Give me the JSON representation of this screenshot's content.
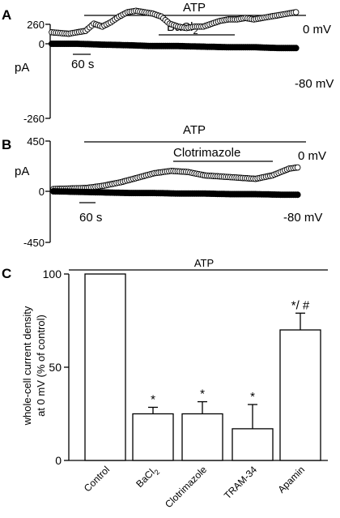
{
  "chart_data": [
    {
      "type": "line",
      "panel_letter": "A",
      "ylabel": "pA",
      "y_ticks": [
        "260",
        "0",
        "-260"
      ],
      "ylim": [
        -260,
        260
      ],
      "treatment_bars": [
        {
          "label": "ATP",
          "x_range_s": [
            80,
            580
          ]
        },
        {
          "label": "BaCl",
          "label_sub": "2",
          "x_range_s": [
            240,
            420
          ]
        }
      ],
      "scale_bar_label": "60 s",
      "series": [
        {
          "name": "0 mV",
          "marker": "open-circle",
          "x": [
            0,
            40,
            80,
            100,
            120,
            140,
            160,
            180,
            200,
            220,
            240,
            260,
            280,
            300,
            320,
            340,
            360,
            380,
            400,
            420,
            440,
            460,
            480,
            500,
            520,
            540,
            560,
            580
          ],
          "y": [
            40,
            35,
            45,
            70,
            60,
            75,
            95,
            110,
            115,
            110,
            105,
            95,
            70,
            60,
            55,
            60,
            60,
            70,
            80,
            85,
            85,
            90,
            85,
            90,
            95,
            100,
            105,
            110
          ]
        },
        {
          "name": "-80 mV",
          "marker": "filled-circle",
          "x": [
            0,
            60,
            120,
            180,
            240,
            300,
            360,
            420,
            480,
            540,
            580
          ],
          "y": [
            0,
            0,
            -3,
            -5,
            -8,
            -8,
            -10,
            -12,
            -12,
            -15,
            -15
          ]
        }
      ]
    },
    {
      "type": "line",
      "panel_letter": "B",
      "ylabel": "pA",
      "y_ticks": [
        "450",
        "0",
        "-450"
      ],
      "ylim": [
        -450,
        450
      ],
      "treatment_bars": [
        {
          "label": "ATP",
          "x_range_s": [
            80,
            580
          ]
        },
        {
          "label": "Clotrimazole",
          "x_range_s": [
            280,
            480
          ]
        }
      ],
      "scale_bar_label": "60 s",
      "series": [
        {
          "name": "0 mV",
          "marker": "open-circle",
          "x": [
            0,
            40,
            80,
            120,
            160,
            200,
            240,
            280,
            320,
            360,
            400,
            440,
            480,
            520,
            560,
            580
          ],
          "y": [
            20,
            25,
            30,
            50,
            80,
            120,
            160,
            180,
            170,
            140,
            130,
            120,
            110,
            140,
            200,
            210
          ]
        },
        {
          "name": "-80 mV",
          "marker": "filled-circle",
          "x": [
            0,
            60,
            120,
            180,
            240,
            300,
            360,
            420,
            480,
            540,
            580
          ],
          "y": [
            0,
            -5,
            -10,
            -15,
            -15,
            -20,
            -20,
            -25,
            -25,
            -30,
            -30
          ]
        }
      ]
    },
    {
      "type": "bar",
      "panel_letter": "C",
      "top_bar_label": "ATP",
      "ylabel_lines": [
        "whole-cell current density",
        "at 0 mV (% of control)"
      ],
      "y_ticks": [
        "0",
        "50",
        "100"
      ],
      "ylim": [
        0,
        100
      ],
      "categories": [
        {
          "label": "Control"
        },
        {
          "label": "BaCl",
          "label_sub": "2"
        },
        {
          "label": "Clotrimazole"
        },
        {
          "label": "TRAM-34"
        },
        {
          "label": "Apamin"
        }
      ],
      "values": [
        100,
        25,
        25,
        17,
        70
      ],
      "errors": [
        0,
        3.5,
        6.5,
        13,
        9
      ],
      "significance": [
        "",
        "*",
        "*",
        "*",
        "*/ #"
      ]
    }
  ]
}
